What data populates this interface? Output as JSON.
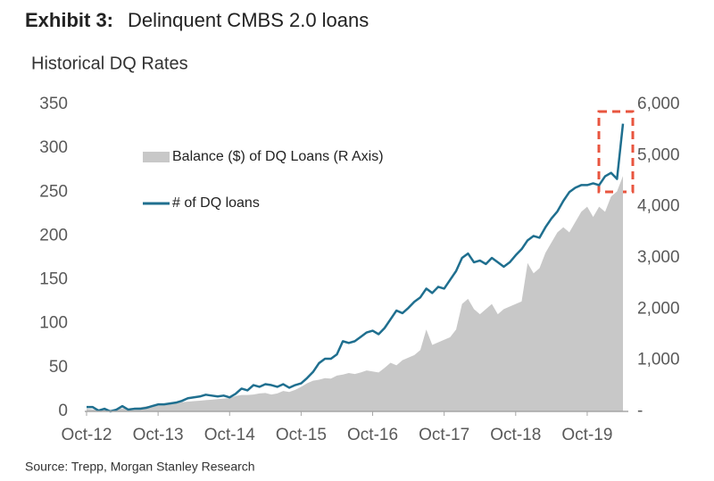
{
  "chart_data": {
    "type": "line",
    "exhibit": "Exhibit 3:",
    "title": "Delinquent CMBS 2.0 loans",
    "subtitle": "Historical DQ Rates",
    "source": "Source: Trepp, Morgan Stanley Research",
    "categories": [
      "Oct-12",
      null,
      null,
      null,
      null,
      null,
      null,
      null,
      null,
      null,
      null,
      null,
      "Oct-13",
      null,
      null,
      null,
      null,
      null,
      null,
      null,
      null,
      null,
      null,
      null,
      "Oct-14",
      null,
      null,
      null,
      null,
      null,
      null,
      null,
      null,
      null,
      null,
      null,
      "Oct-15",
      null,
      null,
      null,
      null,
      null,
      null,
      null,
      null,
      null,
      null,
      null,
      "Oct-16",
      null,
      null,
      null,
      null,
      null,
      null,
      null,
      null,
      null,
      null,
      null,
      "Oct-17",
      null,
      null,
      null,
      null,
      null,
      null,
      null,
      null,
      null,
      null,
      null,
      "Oct-18",
      null,
      null,
      null,
      null,
      null,
      null,
      null,
      null,
      null,
      null,
      null,
      "Oct-19",
      null,
      null,
      null,
      null,
      null,
      null
    ],
    "series": [
      {
        "name": "Balance ($) of DQ Loans (R Axis)",
        "type": "area",
        "axis": "y2",
        "color": "#c8c8c8",
        "values": [
          50,
          40,
          30,
          40,
          30,
          40,
          60,
          60,
          70,
          80,
          100,
          110,
          120,
          150,
          160,
          170,
          180,
          190,
          200,
          210,
          220,
          230,
          240,
          250,
          260,
          300,
          320,
          320,
          330,
          350,
          360,
          330,
          350,
          400,
          380,
          420,
          480,
          550,
          600,
          620,
          650,
          640,
          700,
          720,
          750,
          730,
          760,
          800,
          780,
          760,
          850,
          950,
          900,
          1000,
          1050,
          1100,
          1200,
          1600,
          1300,
          1350,
          1400,
          1450,
          1600,
          2100,
          2200,
          2000,
          1900,
          2000,
          2100,
          1900,
          2000,
          2050,
          2100,
          2150,
          2900,
          2700,
          2800,
          3100,
          3300,
          3500,
          3600,
          3500,
          3700,
          3900,
          4000,
          3800,
          4000,
          3900,
          4200,
          4300,
          4600
        ]
      },
      {
        "name": "# of DQ loans",
        "type": "line",
        "color": "#1f6f8f",
        "values": [
          5,
          5,
          1,
          3,
          0,
          2,
          6,
          2,
          3,
          3,
          4,
          6,
          8,
          8,
          9,
          10,
          12,
          15,
          16,
          17,
          19,
          18,
          17,
          18,
          16,
          20,
          26,
          24,
          30,
          28,
          31,
          30,
          28,
          31,
          27,
          30,
          32,
          38,
          45,
          55,
          60,
          60,
          65,
          80,
          78,
          80,
          85,
          90,
          92,
          88,
          95,
          105,
          115,
          112,
          118,
          125,
          130,
          140,
          135,
          142,
          140,
          150,
          160,
          175,
          180,
          170,
          172,
          168,
          175,
          170,
          165,
          170,
          178,
          185,
          195,
          200,
          198,
          210,
          220,
          228,
          240,
          250,
          255,
          258,
          258,
          260,
          258,
          268,
          272,
          265,
          328
        ]
      }
    ],
    "ylim": [
      0,
      350
    ],
    "yticks": [
      0,
      50,
      100,
      150,
      200,
      250,
      300,
      350
    ],
    "y2lim": [
      0,
      6000
    ],
    "y2ticks": [
      {
        "value": 0,
        "label": "-"
      },
      {
        "value": 1000,
        "label": "1,000"
      },
      {
        "value": 2000,
        "label": "2,000"
      },
      {
        "value": 3000,
        "label": "3,000"
      },
      {
        "value": 4000,
        "label": "4,000"
      },
      {
        "value": 5000,
        "label": "5,000"
      },
      {
        "value": 6000,
        "label": "6,000"
      }
    ],
    "grid": false
  }
}
